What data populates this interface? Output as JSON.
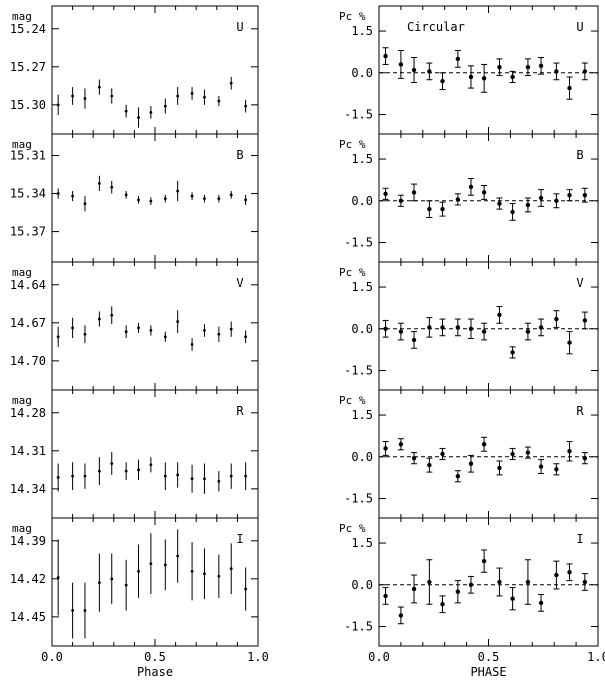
{
  "chart_data": [
    {
      "type": "scatter",
      "column": "photometry",
      "xlabel": "Phase",
      "xlim": [
        0.0,
        1.0
      ],
      "xticks": [
        "0.0",
        "0.5",
        "1.0"
      ],
      "panels": [
        {
          "band": "U",
          "ylabel": "mag",
          "inverted": true,
          "ylim": [
            15.222,
            15.323
          ],
          "yticks": [
            "15.24",
            "15.27",
            "15.30"
          ],
          "ytick_values": [
            15.24,
            15.27,
            15.3
          ],
          "x": [
            0.03,
            0.1,
            0.16,
            0.23,
            0.29,
            0.36,
            0.42,
            0.48,
            0.55,
            0.61,
            0.68,
            0.74,
            0.81,
            0.87,
            0.94
          ],
          "y": [
            15.3,
            15.293,
            15.295,
            15.286,
            15.293,
            15.305,
            15.31,
            15.306,
            15.301,
            15.293,
            15.291,
            15.294,
            15.297,
            15.283,
            15.301
          ],
          "err": [
            0.008,
            0.007,
            0.008,
            0.006,
            0.006,
            0.005,
            0.008,
            0.005,
            0.006,
            0.007,
            0.005,
            0.006,
            0.004,
            0.005,
            0.005
          ]
        },
        {
          "band": "B",
          "ylabel": "mag",
          "inverted": true,
          "ylim": [
            15.293,
            15.394
          ],
          "yticks": [
            "15.31",
            "15.34",
            "15.37"
          ],
          "ytick_values": [
            15.31,
            15.34,
            15.37
          ],
          "x": [
            0.03,
            0.1,
            0.16,
            0.23,
            0.29,
            0.36,
            0.42,
            0.48,
            0.55,
            0.61,
            0.68,
            0.74,
            0.81,
            0.87,
            0.94
          ],
          "y": [
            15.34,
            15.342,
            15.348,
            15.332,
            15.335,
            15.341,
            15.345,
            15.346,
            15.344,
            15.338,
            15.342,
            15.344,
            15.344,
            15.341,
            15.345
          ],
          "err": [
            0.004,
            0.004,
            0.006,
            0.006,
            0.005,
            0.003,
            0.003,
            0.003,
            0.003,
            0.008,
            0.003,
            0.003,
            0.003,
            0.003,
            0.004
          ]
        },
        {
          "band": "V",
          "ylabel": "mag",
          "inverted": true,
          "ylim": [
            14.622,
            14.723
          ],
          "yticks": [
            "14.64",
            "14.67",
            "14.70"
          ],
          "ytick_values": [
            14.64,
            14.67,
            14.7
          ],
          "x": [
            0.03,
            0.1,
            0.16,
            0.23,
            0.29,
            0.36,
            0.42,
            0.48,
            0.55,
            0.61,
            0.68,
            0.74,
            0.81,
            0.87,
            0.94
          ],
          "y": [
            14.681,
            14.674,
            14.679,
            14.667,
            14.664,
            14.677,
            14.674,
            14.676,
            14.681,
            14.669,
            14.687,
            14.676,
            14.679,
            14.675,
            14.681
          ],
          "err": [
            0.008,
            0.008,
            0.007,
            0.006,
            0.007,
            0.005,
            0.004,
            0.004,
            0.004,
            0.009,
            0.005,
            0.005,
            0.006,
            0.006,
            0.005
          ]
        },
        {
          "band": "R",
          "ylabel": "mag",
          "inverted": true,
          "ylim": [
            14.262,
            14.363
          ],
          "yticks": [
            "14.28",
            "14.31",
            "14.34"
          ],
          "ytick_values": [
            14.28,
            14.31,
            14.34
          ],
          "x": [
            0.03,
            0.1,
            0.16,
            0.23,
            0.29,
            0.36,
            0.42,
            0.48,
            0.55,
            0.61,
            0.68,
            0.74,
            0.81,
            0.87,
            0.94
          ],
          "y": [
            14.331,
            14.33,
            14.33,
            14.326,
            14.32,
            14.326,
            14.325,
            14.321,
            14.33,
            14.329,
            14.332,
            14.332,
            14.334,
            14.33,
            14.33
          ],
          "err": [
            0.011,
            0.011,
            0.01,
            0.011,
            0.009,
            0.007,
            0.008,
            0.006,
            0.011,
            0.01,
            0.011,
            0.012,
            0.008,
            0.01,
            0.011
          ]
        },
        {
          "band": "I",
          "ylabel": "mag",
          "inverted": true,
          "ylim": [
            14.372,
            14.473
          ],
          "yticks": [
            "14.39",
            "14.42",
            "14.45"
          ],
          "ytick_values": [
            14.39,
            14.42,
            14.45
          ],
          "x": [
            0.03,
            0.1,
            0.16,
            0.23,
            0.29,
            0.36,
            0.42,
            0.48,
            0.55,
            0.61,
            0.68,
            0.74,
            0.81,
            0.87,
            0.94
          ],
          "y": [
            14.419,
            14.445,
            14.445,
            14.423,
            14.42,
            14.425,
            14.414,
            14.408,
            14.409,
            14.402,
            14.414,
            14.416,
            14.418,
            14.412,
            14.428
          ],
          "err": [
            0.03,
            0.022,
            0.022,
            0.023,
            0.02,
            0.02,
            0.021,
            0.024,
            0.02,
            0.021,
            0.023,
            0.02,
            0.017,
            0.02,
            0.017
          ]
        }
      ]
    },
    {
      "type": "scatter",
      "column": "polarimetry",
      "xlabel": "PHASE",
      "xlim": [
        0.0,
        1.0
      ],
      "xticks": [
        "0.0",
        "0.5",
        "1.0"
      ],
      "annotation": "Circular",
      "panels": [
        {
          "band": "U",
          "ylabel": "Pc %",
          "ylim": [
            -2.2,
            2.4
          ],
          "yticks": [
            "1.5",
            "0.0",
            "-1.5"
          ],
          "ytick_values": [
            1.5,
            0.0,
            -1.5
          ],
          "x": [
            0.03,
            0.1,
            0.16,
            0.23,
            0.29,
            0.36,
            0.42,
            0.48,
            0.55,
            0.61,
            0.68,
            0.74,
            0.81,
            0.87,
            0.94
          ],
          "y": [
            0.6,
            0.3,
            0.1,
            0.05,
            -0.3,
            0.5,
            -0.15,
            -0.2,
            0.2,
            -0.15,
            0.2,
            0.25,
            0.05,
            -0.55,
            0.05
          ],
          "err": [
            0.3,
            0.5,
            0.45,
            0.3,
            0.3,
            0.3,
            0.4,
            0.5,
            0.3,
            0.2,
            0.3,
            0.3,
            0.3,
            0.4,
            0.3
          ]
        },
        {
          "band": "B",
          "ylabel": "Pc %",
          "ylim": [
            -2.2,
            2.4
          ],
          "yticks": [
            "1.5",
            "0.0",
            "-1.5"
          ],
          "ytick_values": [
            1.5,
            0.0,
            -1.5
          ],
          "x": [
            0.03,
            0.1,
            0.16,
            0.23,
            0.29,
            0.36,
            0.42,
            0.48,
            0.55,
            0.61,
            0.68,
            0.74,
            0.81,
            0.87,
            0.94
          ],
          "y": [
            0.25,
            0.0,
            0.3,
            -0.3,
            -0.3,
            0.05,
            0.5,
            0.3,
            -0.1,
            -0.4,
            -0.15,
            0.1,
            0.0,
            0.2,
            0.2
          ],
          "err": [
            0.2,
            0.2,
            0.3,
            0.3,
            0.25,
            0.2,
            0.3,
            0.25,
            0.2,
            0.3,
            0.25,
            0.3,
            0.25,
            0.2,
            0.25
          ]
        },
        {
          "band": "V",
          "ylabel": "Pc %",
          "ylim": [
            -2.2,
            2.4
          ],
          "yticks": [
            "1.5",
            "0.0",
            "-1.5"
          ],
          "ytick_values": [
            1.5,
            0.0,
            -1.5
          ],
          "x": [
            0.03,
            0.1,
            0.16,
            0.23,
            0.29,
            0.36,
            0.42,
            0.48,
            0.55,
            0.61,
            0.68,
            0.74,
            0.81,
            0.87,
            0.94
          ],
          "y": [
            0.0,
            -0.1,
            -0.4,
            0.05,
            0.05,
            0.05,
            0.0,
            -0.1,
            0.5,
            -0.85,
            -0.1,
            0.05,
            0.35,
            -0.5,
            0.3
          ],
          "err": [
            0.3,
            0.3,
            0.3,
            0.35,
            0.3,
            0.3,
            0.35,
            0.3,
            0.3,
            0.2,
            0.3,
            0.3,
            0.3,
            0.4,
            0.3
          ]
        },
        {
          "band": "R",
          "ylabel": "Pc %",
          "ylim": [
            -2.2,
            2.4
          ],
          "yticks": [
            "1.5",
            "0.0",
            "-1.5"
          ],
          "ytick_values": [
            1.5,
            0.0,
            -1.5
          ],
          "x": [
            0.03,
            0.1,
            0.16,
            0.23,
            0.29,
            0.36,
            0.42,
            0.48,
            0.55,
            0.61,
            0.68,
            0.74,
            0.81,
            0.87,
            0.94
          ],
          "y": [
            0.3,
            0.45,
            -0.05,
            -0.3,
            0.1,
            -0.7,
            -0.25,
            0.45,
            -0.4,
            0.1,
            0.15,
            -0.35,
            -0.45,
            0.2,
            -0.05
          ],
          "err": [
            0.25,
            0.2,
            0.2,
            0.25,
            0.2,
            0.2,
            0.3,
            0.25,
            0.25,
            0.2,
            0.2,
            0.25,
            0.2,
            0.35,
            0.2
          ]
        },
        {
          "band": "I",
          "ylabel": "Pc %",
          "ylim": [
            -2.2,
            2.4
          ],
          "yticks": [
            "1.5",
            "0.0",
            "-1.5"
          ],
          "ytick_values": [
            1.5,
            0.0,
            -1.5
          ],
          "x": [
            0.03,
            0.1,
            0.16,
            0.23,
            0.29,
            0.36,
            0.42,
            0.48,
            0.55,
            0.61,
            0.68,
            0.74,
            0.81,
            0.87,
            0.94
          ],
          "y": [
            -0.4,
            -1.1,
            -0.15,
            0.1,
            -0.7,
            -0.25,
            0.0,
            0.85,
            0.1,
            -0.5,
            0.1,
            -0.65,
            0.35,
            0.45,
            0.1
          ],
          "err": [
            0.3,
            0.3,
            0.5,
            0.8,
            0.3,
            0.4,
            0.3,
            0.4,
            0.5,
            0.4,
            0.8,
            0.3,
            0.5,
            0.3,
            0.3
          ]
        }
      ]
    }
  ]
}
